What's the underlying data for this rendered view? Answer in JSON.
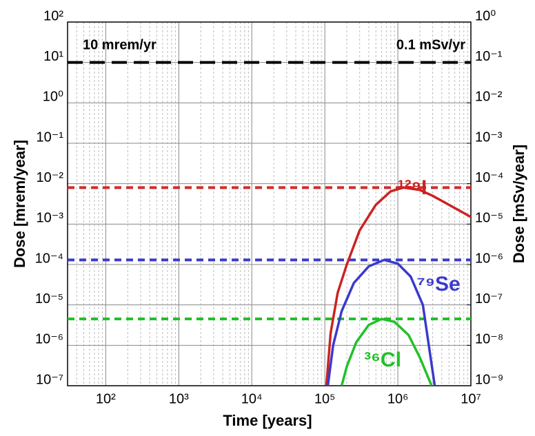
{
  "chart_data": {
    "type": "line",
    "xlabel": "Time [years]",
    "ylabel": "Dose [mrem/year]",
    "y2label": "Dose [mSv/year]",
    "log_x": true,
    "log_y": true,
    "grid": true,
    "minor_grid_x": true,
    "xlim": [
      30,
      10000000
    ],
    "xticks": [
      {
        "value": 100,
        "label": "10²"
      },
      {
        "value": 1000,
        "label": "10³"
      },
      {
        "value": 10000,
        "label": "10⁴"
      },
      {
        "value": 100000,
        "label": "10⁵"
      },
      {
        "value": 1000000,
        "label": "10⁶"
      },
      {
        "value": 10000000,
        "label": "10⁷"
      }
    ],
    "ylim": [
      1e-07,
      100
    ],
    "yticks": [
      {
        "value": 1e-07,
        "label": "10⁻⁷"
      },
      {
        "value": 1e-06,
        "label": "10⁻⁶"
      },
      {
        "value": 1e-05,
        "label": "10⁻⁵"
      },
      {
        "value": 0.0001,
        "label": "10⁻⁴"
      },
      {
        "value": 0.001,
        "label": "10⁻³"
      },
      {
        "value": 0.01,
        "label": "10⁻²"
      },
      {
        "value": 0.1,
        "label": "10⁻¹"
      },
      {
        "value": 1,
        "label": "10⁰"
      },
      {
        "value": 10,
        "label": "10¹"
      },
      {
        "value": 100,
        "label": "10²"
      }
    ],
    "y2lim": [
      1e-09,
      1
    ],
    "y2ticks": [
      {
        "value": 1e-09,
        "label": "10⁻⁹"
      },
      {
        "value": 1e-08,
        "label": "10⁻⁸"
      },
      {
        "value": 1e-07,
        "label": "10⁻⁷"
      },
      {
        "value": 1e-06,
        "label": "10⁻⁶"
      },
      {
        "value": 1e-05,
        "label": "10⁻⁵"
      },
      {
        "value": 0.0001,
        "label": "10⁻⁴"
      },
      {
        "value": 0.001,
        "label": "10⁻³"
      },
      {
        "value": 0.01,
        "label": "10⁻²"
      },
      {
        "value": 0.1,
        "label": "10⁻¹"
      },
      {
        "value": 1,
        "label": "10⁰"
      }
    ],
    "reference_lines": [
      {
        "value": 10,
        "color": "#000000"
      },
      {
        "value": 0.008,
        "color": "#d42a2a"
      },
      {
        "value": 0.00013,
        "color": "#3a3acc"
      },
      {
        "value": 4.5e-06,
        "color": "#22c02a"
      }
    ],
    "annotations": [
      "10 mrem/yr",
      "0.1 mSv/yr"
    ],
    "series": [
      {
        "name": "¹²⁹I",
        "color": "#cc2222",
        "x": [
          105000,
          120000,
          150000,
          200000,
          300000,
          500000,
          800000,
          1200000,
          2000000,
          3000000,
          5000000,
          10000000
        ],
        "values": [
          1e-07,
          2e-06,
          2e-05,
          0.0001,
          0.0007,
          0.003,
          0.0065,
          0.008,
          0.007,
          0.005,
          0.003,
          0.0015
        ]
      },
      {
        "name": "⁷⁹Se",
        "color": "#3a3acc",
        "x": [
          110000,
          130000,
          170000,
          250000,
          400000,
          650000,
          1000000,
          1500000,
          2200000,
          3200000
        ],
        "values": [
          1e-07,
          1e-06,
          7e-06,
          3.5e-05,
          9e-05,
          0.00013,
          0.000105,
          5e-05,
          1e-05,
          1e-07
        ]
      },
      {
        "name": "³⁶Cl",
        "color": "#22c02a",
        "x": [
          170000,
          200000,
          270000,
          400000,
          600000,
          900000,
          1400000,
          2000000,
          2900000
        ],
        "values": [
          1e-07,
          3e-07,
          1.2e-06,
          3.2e-06,
          4.5e-06,
          3.8e-06,
          1.8e-06,
          5e-07,
          1e-07
        ]
      }
    ]
  }
}
